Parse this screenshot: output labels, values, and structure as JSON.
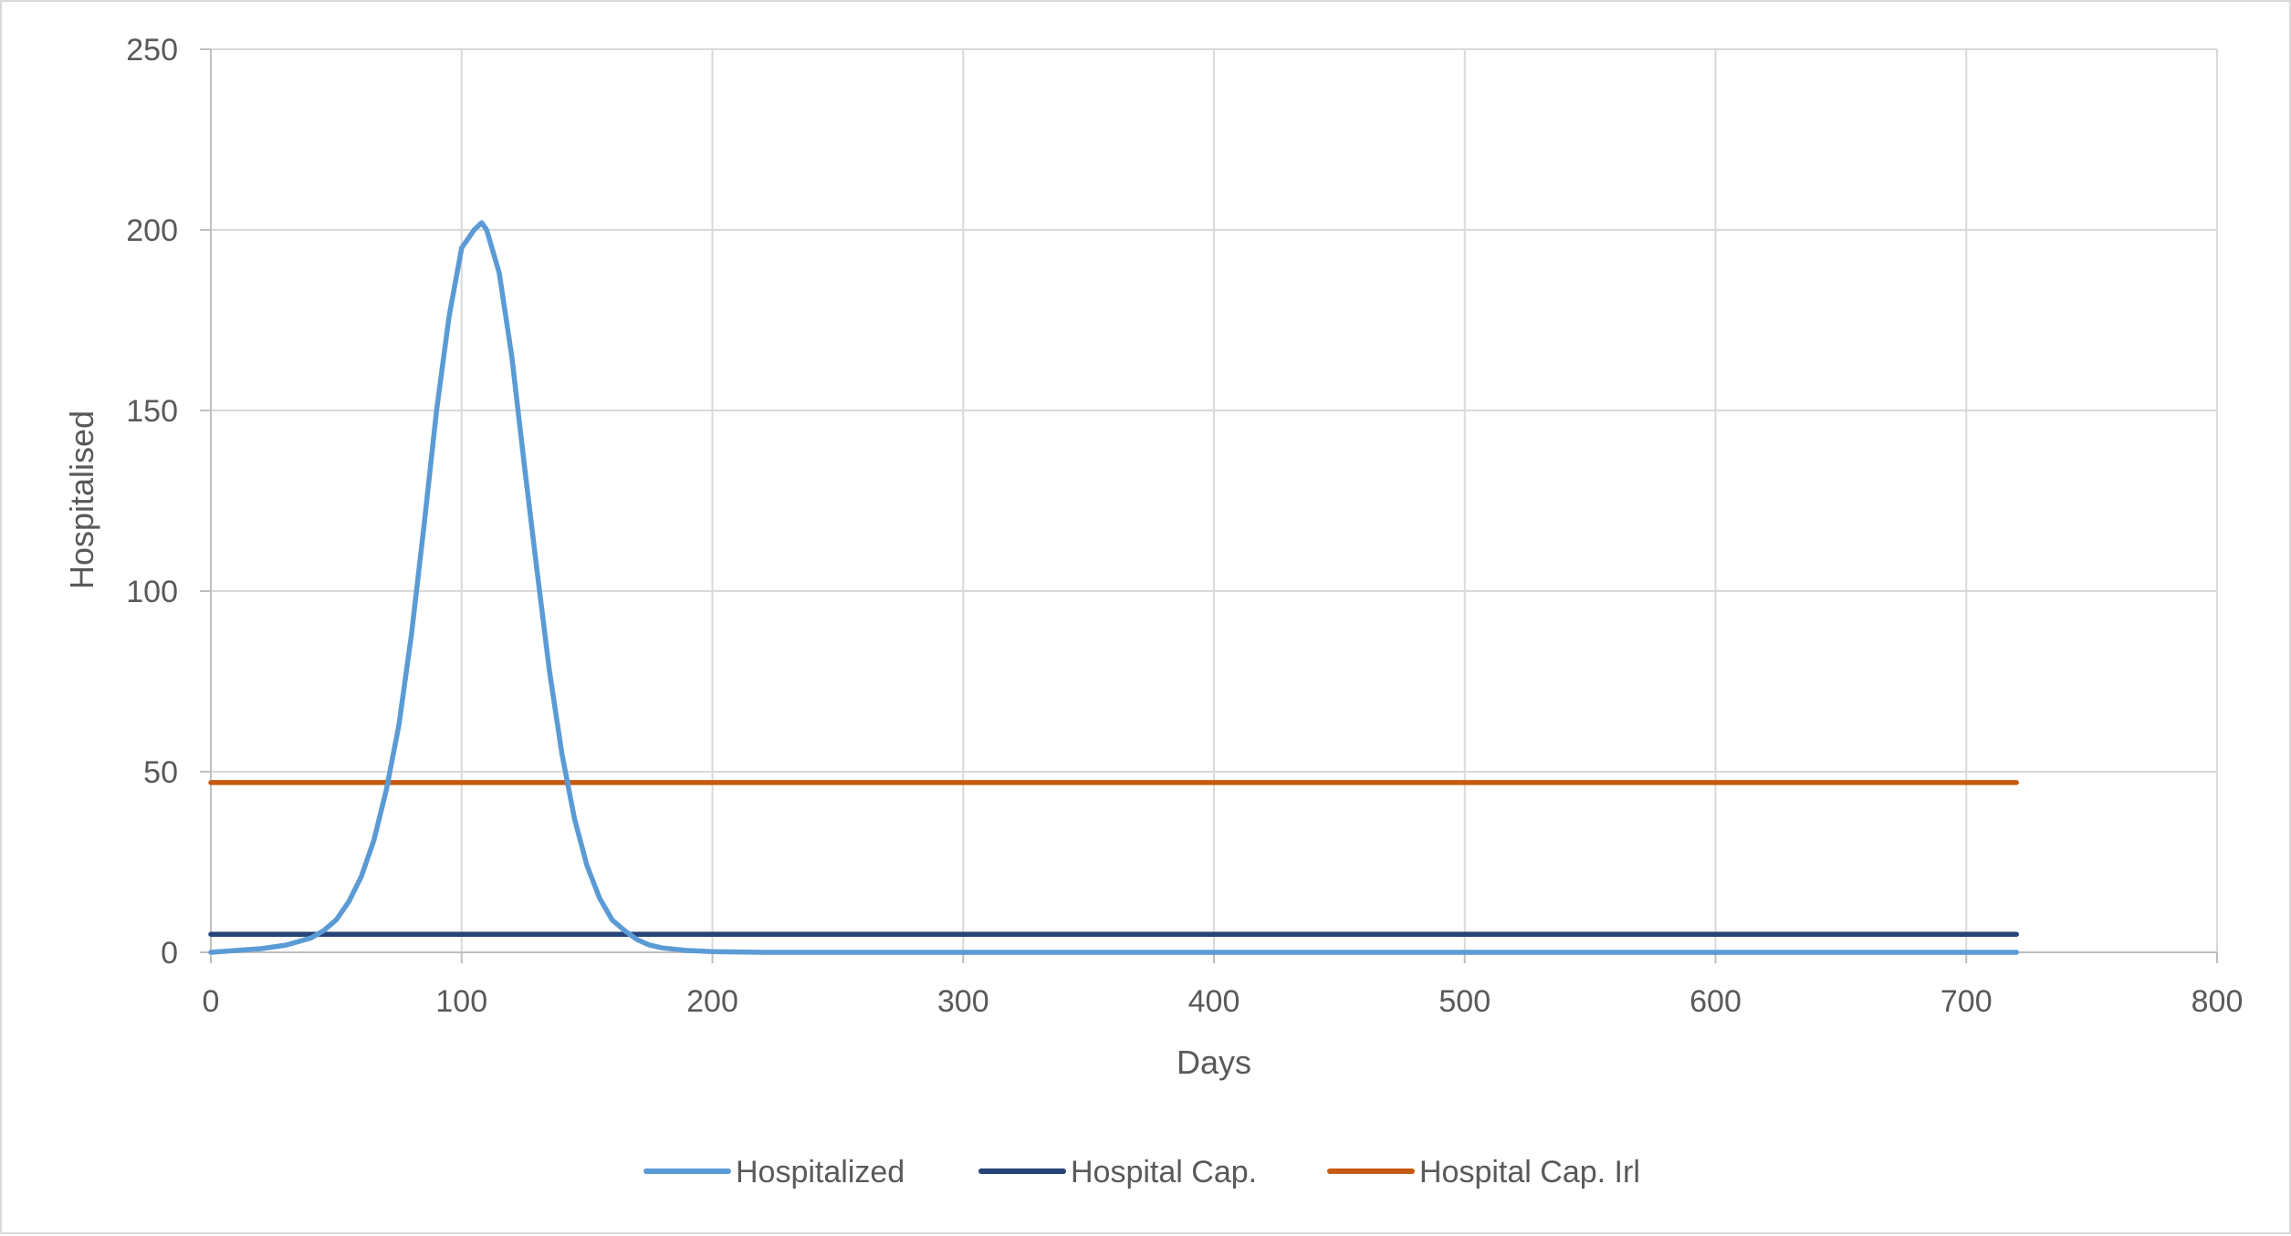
{
  "chart_data": {
    "type": "line",
    "title": "",
    "xlabel": "Days",
    "ylabel": "Hospitalised",
    "xlim": [
      0,
      800
    ],
    "ylim": [
      0,
      250
    ],
    "xticks": [
      0,
      100,
      200,
      300,
      400,
      500,
      600,
      700,
      800
    ],
    "yticks": [
      0,
      50,
      100,
      150,
      200,
      250
    ],
    "grid": true,
    "legend_position": "bottom",
    "series": [
      {
        "name": "Hospitalized",
        "color": "#5b9bd5",
        "x": [
          0,
          10,
          20,
          30,
          40,
          45,
          50,
          55,
          60,
          65,
          70,
          75,
          80,
          85,
          90,
          95,
          100,
          105,
          108,
          110,
          115,
          120,
          125,
          130,
          135,
          140,
          145,
          150,
          155,
          160,
          165,
          170,
          175,
          180,
          190,
          200,
          210,
          220,
          300,
          400,
          500,
          600,
          720
        ],
        "y": [
          0,
          0.5,
          1,
          2,
          4,
          6,
          9,
          14,
          21,
          31,
          45,
          63,
          88,
          118,
          150,
          176,
          195,
          200,
          202,
          200,
          188,
          165,
          135,
          106,
          78,
          55,
          37,
          24,
          15,
          9,
          6,
          3.5,
          2,
          1.2,
          0.5,
          0.2,
          0.1,
          0,
          0,
          0,
          0,
          0,
          0
        ]
      },
      {
        "name": "Hospital Cap.",
        "color": "#264478",
        "x": [
          0,
          720
        ],
        "y": [
          5,
          5
        ]
      },
      {
        "name": "Hospital Cap. Irl",
        "color": "#c55a11",
        "x": [
          0,
          720
        ],
        "y": [
          47,
          47
        ]
      }
    ]
  }
}
